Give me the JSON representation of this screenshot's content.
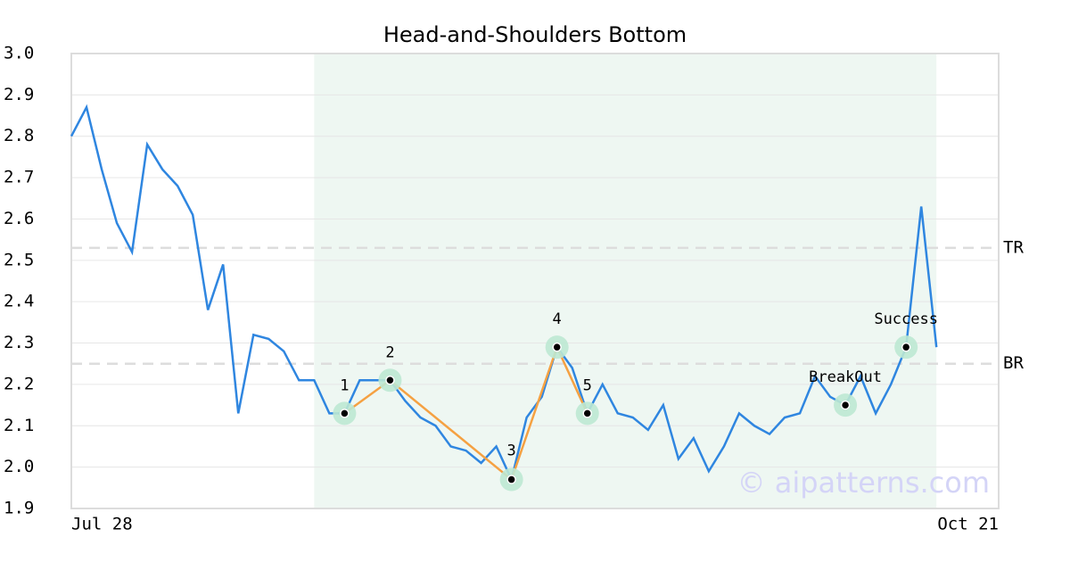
{
  "chart_data": {
    "type": "line",
    "title": "Head-and-Shoulders Bottom",
    "x": [
      0,
      1,
      2,
      3,
      4,
      5,
      6,
      7,
      8,
      9,
      10,
      11,
      12,
      13,
      14,
      15,
      16,
      17,
      18,
      19,
      20,
      21,
      22,
      23,
      24,
      25,
      26,
      27,
      28,
      29,
      30,
      31,
      32,
      33,
      34,
      35,
      36,
      37,
      38,
      39,
      40,
      41,
      42,
      43,
      44,
      45,
      46,
      47,
      48,
      49,
      50,
      51,
      52,
      53,
      54,
      55,
      56,
      57
    ],
    "values": [
      2.8,
      2.87,
      2.72,
      2.59,
      2.52,
      2.78,
      2.72,
      2.68,
      2.61,
      2.38,
      2.49,
      2.13,
      2.32,
      2.31,
      2.28,
      2.21,
      2.21,
      2.13,
      2.13,
      2.21,
      2.21,
      2.21,
      2.16,
      2.12,
      2.1,
      2.05,
      2.04,
      2.01,
      2.05,
      1.97,
      2.12,
      2.17,
      2.29,
      2.24,
      2.13,
      2.2,
      2.13,
      2.12,
      2.09,
      2.15,
      2.02,
      2.07,
      1.99,
      2.05,
      2.13,
      2.1,
      2.08,
      2.12,
      2.13,
      2.22,
      2.17,
      2.15,
      2.22,
      2.13,
      2.2,
      2.29,
      2.63,
      2.29
    ],
    "color": "#2f86e0",
    "pattern": {
      "color": "#f5a142",
      "x": [
        18,
        21,
        29,
        32,
        34
      ],
      "values": [
        2.13,
        2.21,
        1.97,
        2.29,
        2.13
      ],
      "labels": [
        "1",
        "2",
        "3",
        "4",
        "5"
      ]
    },
    "signals": {
      "x": [
        51,
        55
      ],
      "values": [
        2.15,
        2.29
      ],
      "labels": [
        "BreakOut",
        "Success"
      ]
    },
    "levels": [
      {
        "label": "TR",
        "value": 2.53
      },
      {
        "label": "BR",
        "value": 2.25
      }
    ],
    "highlight_xlim": [
      16,
      57
    ],
    "xlim": [
      0,
      61.1
    ],
    "xticks": [
      {
        "value": 0,
        "label": "Jul 28"
      },
      {
        "value": 61.1,
        "label": "Oct 21"
      }
    ],
    "ylim": [
      1.9,
      3.0
    ],
    "yticks": [
      1.9,
      {
        "value": 2.0,
        "label": "2.0"
      },
      2.1,
      2.2,
      2.3,
      2.4,
      2.5,
      2.6,
      2.7,
      2.8,
      2.9,
      {
        "value": 3.0,
        "label": "3.0"
      }
    ],
    "grid": true,
    "watermark": "© aipatterns.com"
  }
}
